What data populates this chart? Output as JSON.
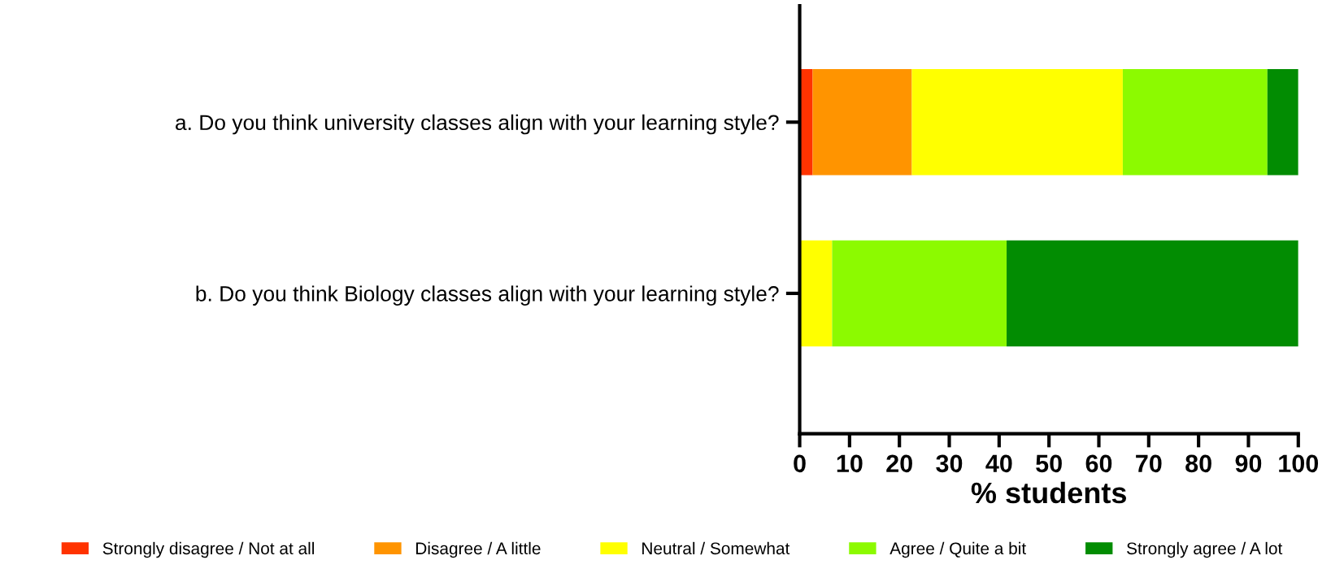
{
  "chart_data": {
    "type": "bar",
    "orientation": "horizontal",
    "stacked": true,
    "categories": [
      "a. Do you think university classes align with your learning style?",
      "b. Do you think Biology classes align with your learning style?"
    ],
    "series": [
      {
        "name": "Strongly disagree / Not at all",
        "color": "#ff3300",
        "values": [
          2.6,
          0
        ]
      },
      {
        "name": "Disagree / A little",
        "color": "#ff9400",
        "values": [
          19.9,
          0
        ]
      },
      {
        "name": "Neutral / Somewhat",
        "color": "#ffff00",
        "values": [
          42.3,
          6.5
        ]
      },
      {
        "name": "Agree / Quite a bit",
        "color": "#8cfa00",
        "values": [
          29.0,
          35.0
        ]
      },
      {
        "name": "Strongly agree / A lot",
        "color": "#028c02",
        "values": [
          6.2,
          58.5
        ]
      }
    ],
    "xlabel": "% students",
    "xlim": [
      0,
      100
    ],
    "xticks": [
      0,
      10,
      20,
      30,
      40,
      50,
      60,
      70,
      80,
      90,
      100
    ],
    "grid": false,
    "legend": "bottom"
  }
}
